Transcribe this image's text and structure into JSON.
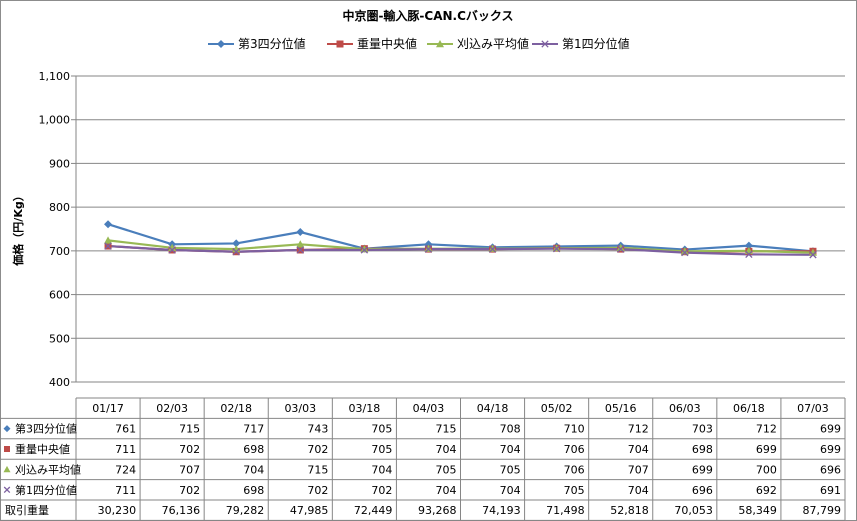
{
  "chart_data": {
    "type": "line",
    "title": "中京圏-輸入豚-CAN.Cバックス",
    "ylabel": "価格（円/Kg）",
    "xlabel": "",
    "ylim": [
      400,
      1100
    ],
    "yticks": [
      400,
      500,
      600,
      700,
      800,
      900,
      1000,
      1100
    ],
    "ytick_labels": [
      "400",
      "500",
      "600",
      "700",
      "800",
      "900",
      "1,000",
      "1,100"
    ],
    "grid": true,
    "legend_position": "top",
    "categories": [
      "01/17",
      "02/03",
      "02/18",
      "03/03",
      "03/18",
      "04/03",
      "04/18",
      "05/02",
      "05/16",
      "06/03",
      "06/18",
      "07/03"
    ],
    "series": [
      {
        "name": "第3四分位値",
        "color": "#4a7ebb",
        "marker": "diamond",
        "values": [
          761,
          715,
          717,
          743,
          705,
          715,
          708,
          710,
          712,
          703,
          712,
          699
        ],
        "labels": [
          "761",
          "715",
          "717",
          "743",
          "705",
          "715",
          "708",
          "710",
          "712",
          "703",
          "712",
          "699"
        ]
      },
      {
        "name": "重量中央値",
        "color": "#be4b48",
        "marker": "square",
        "values": [
          711,
          702,
          698,
          702,
          705,
          704,
          704,
          706,
          704,
          698,
          699,
          699
        ],
        "labels": [
          "711",
          "702",
          "698",
          "702",
          "705",
          "704",
          "704",
          "706",
          "704",
          "698",
          "699",
          "699"
        ]
      },
      {
        "name": "刈込み平均値",
        "color": "#98b954",
        "marker": "triangle",
        "values": [
          724,
          707,
          704,
          715,
          704,
          705,
          705,
          706,
          707,
          699,
          700,
          696
        ],
        "labels": [
          "724",
          "707",
          "704",
          "715",
          "704",
          "705",
          "705",
          "706",
          "707",
          "699",
          "700",
          "696"
        ]
      },
      {
        "name": "第1四分位値",
        "color": "#7d60a0",
        "marker": "x",
        "values": [
          711,
          702,
          698,
          702,
          702,
          704,
          704,
          705,
          704,
          696,
          692,
          691
        ],
        "labels": [
          "711",
          "702",
          "698",
          "702",
          "702",
          "704",
          "704",
          "705",
          "704",
          "696",
          "692",
          "691"
        ]
      }
    ],
    "volume_row": {
      "name": "取引重量",
      "values": [
        30230,
        76136,
        79282,
        47985,
        72449,
        93268,
        74193,
        71498,
        52818,
        70053,
        58349,
        87799
      ],
      "labels": [
        "30,230",
        "76,136",
        "79,282",
        "47,985",
        "72,449",
        "93,268",
        "74,193",
        "71,498",
        "52,818",
        "70,053",
        "58,349",
        "87,799"
      ]
    }
  }
}
